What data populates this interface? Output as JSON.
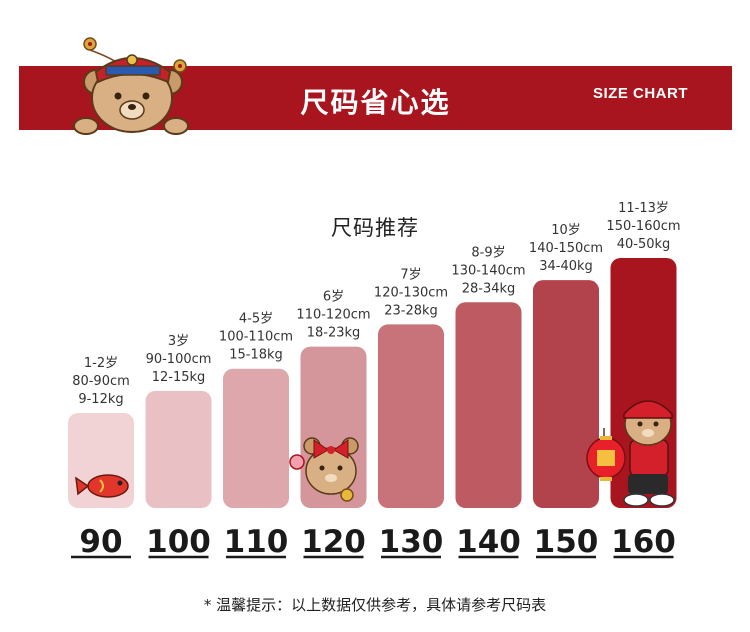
{
  "header": {
    "title": "尺码省心选",
    "subtitle": "SIZE CHART"
  },
  "footnote": "* 温馨提示：以上数据仅供参考，具体请参考尺码表",
  "chart_data": {
    "type": "bar",
    "title": "尺码推荐",
    "categories": [
      "90",
      "100",
      "110",
      "120",
      "130",
      "140",
      "150",
      "160"
    ],
    "values": [
      90,
      100,
      110,
      120,
      130,
      140,
      150,
      160
    ],
    "labels": [
      [
        "1-2岁",
        "80-90cm",
        "9-12kg"
      ],
      [
        "3岁",
        "90-100cm",
        "12-15kg"
      ],
      [
        "4-5岁",
        "100-110cm",
        "15-18kg"
      ],
      [
        "6岁",
        "110-120cm",
        "18-23kg"
      ],
      [
        "7岁",
        "120-130cm",
        "23-28kg"
      ],
      [
        "8-9岁",
        "130-140cm",
        "28-34kg"
      ],
      [
        "10岁",
        "140-150cm",
        "34-40kg"
      ],
      [
        "11-13岁",
        "150-160cm",
        "40-50kg"
      ]
    ],
    "colors": [
      "#f1d3d6",
      "#e9c1c4",
      "#dda7ab",
      "#d4969b",
      "#c77379",
      "#bd5a62",
      "#b2424b",
      "#a8151e"
    ]
  }
}
